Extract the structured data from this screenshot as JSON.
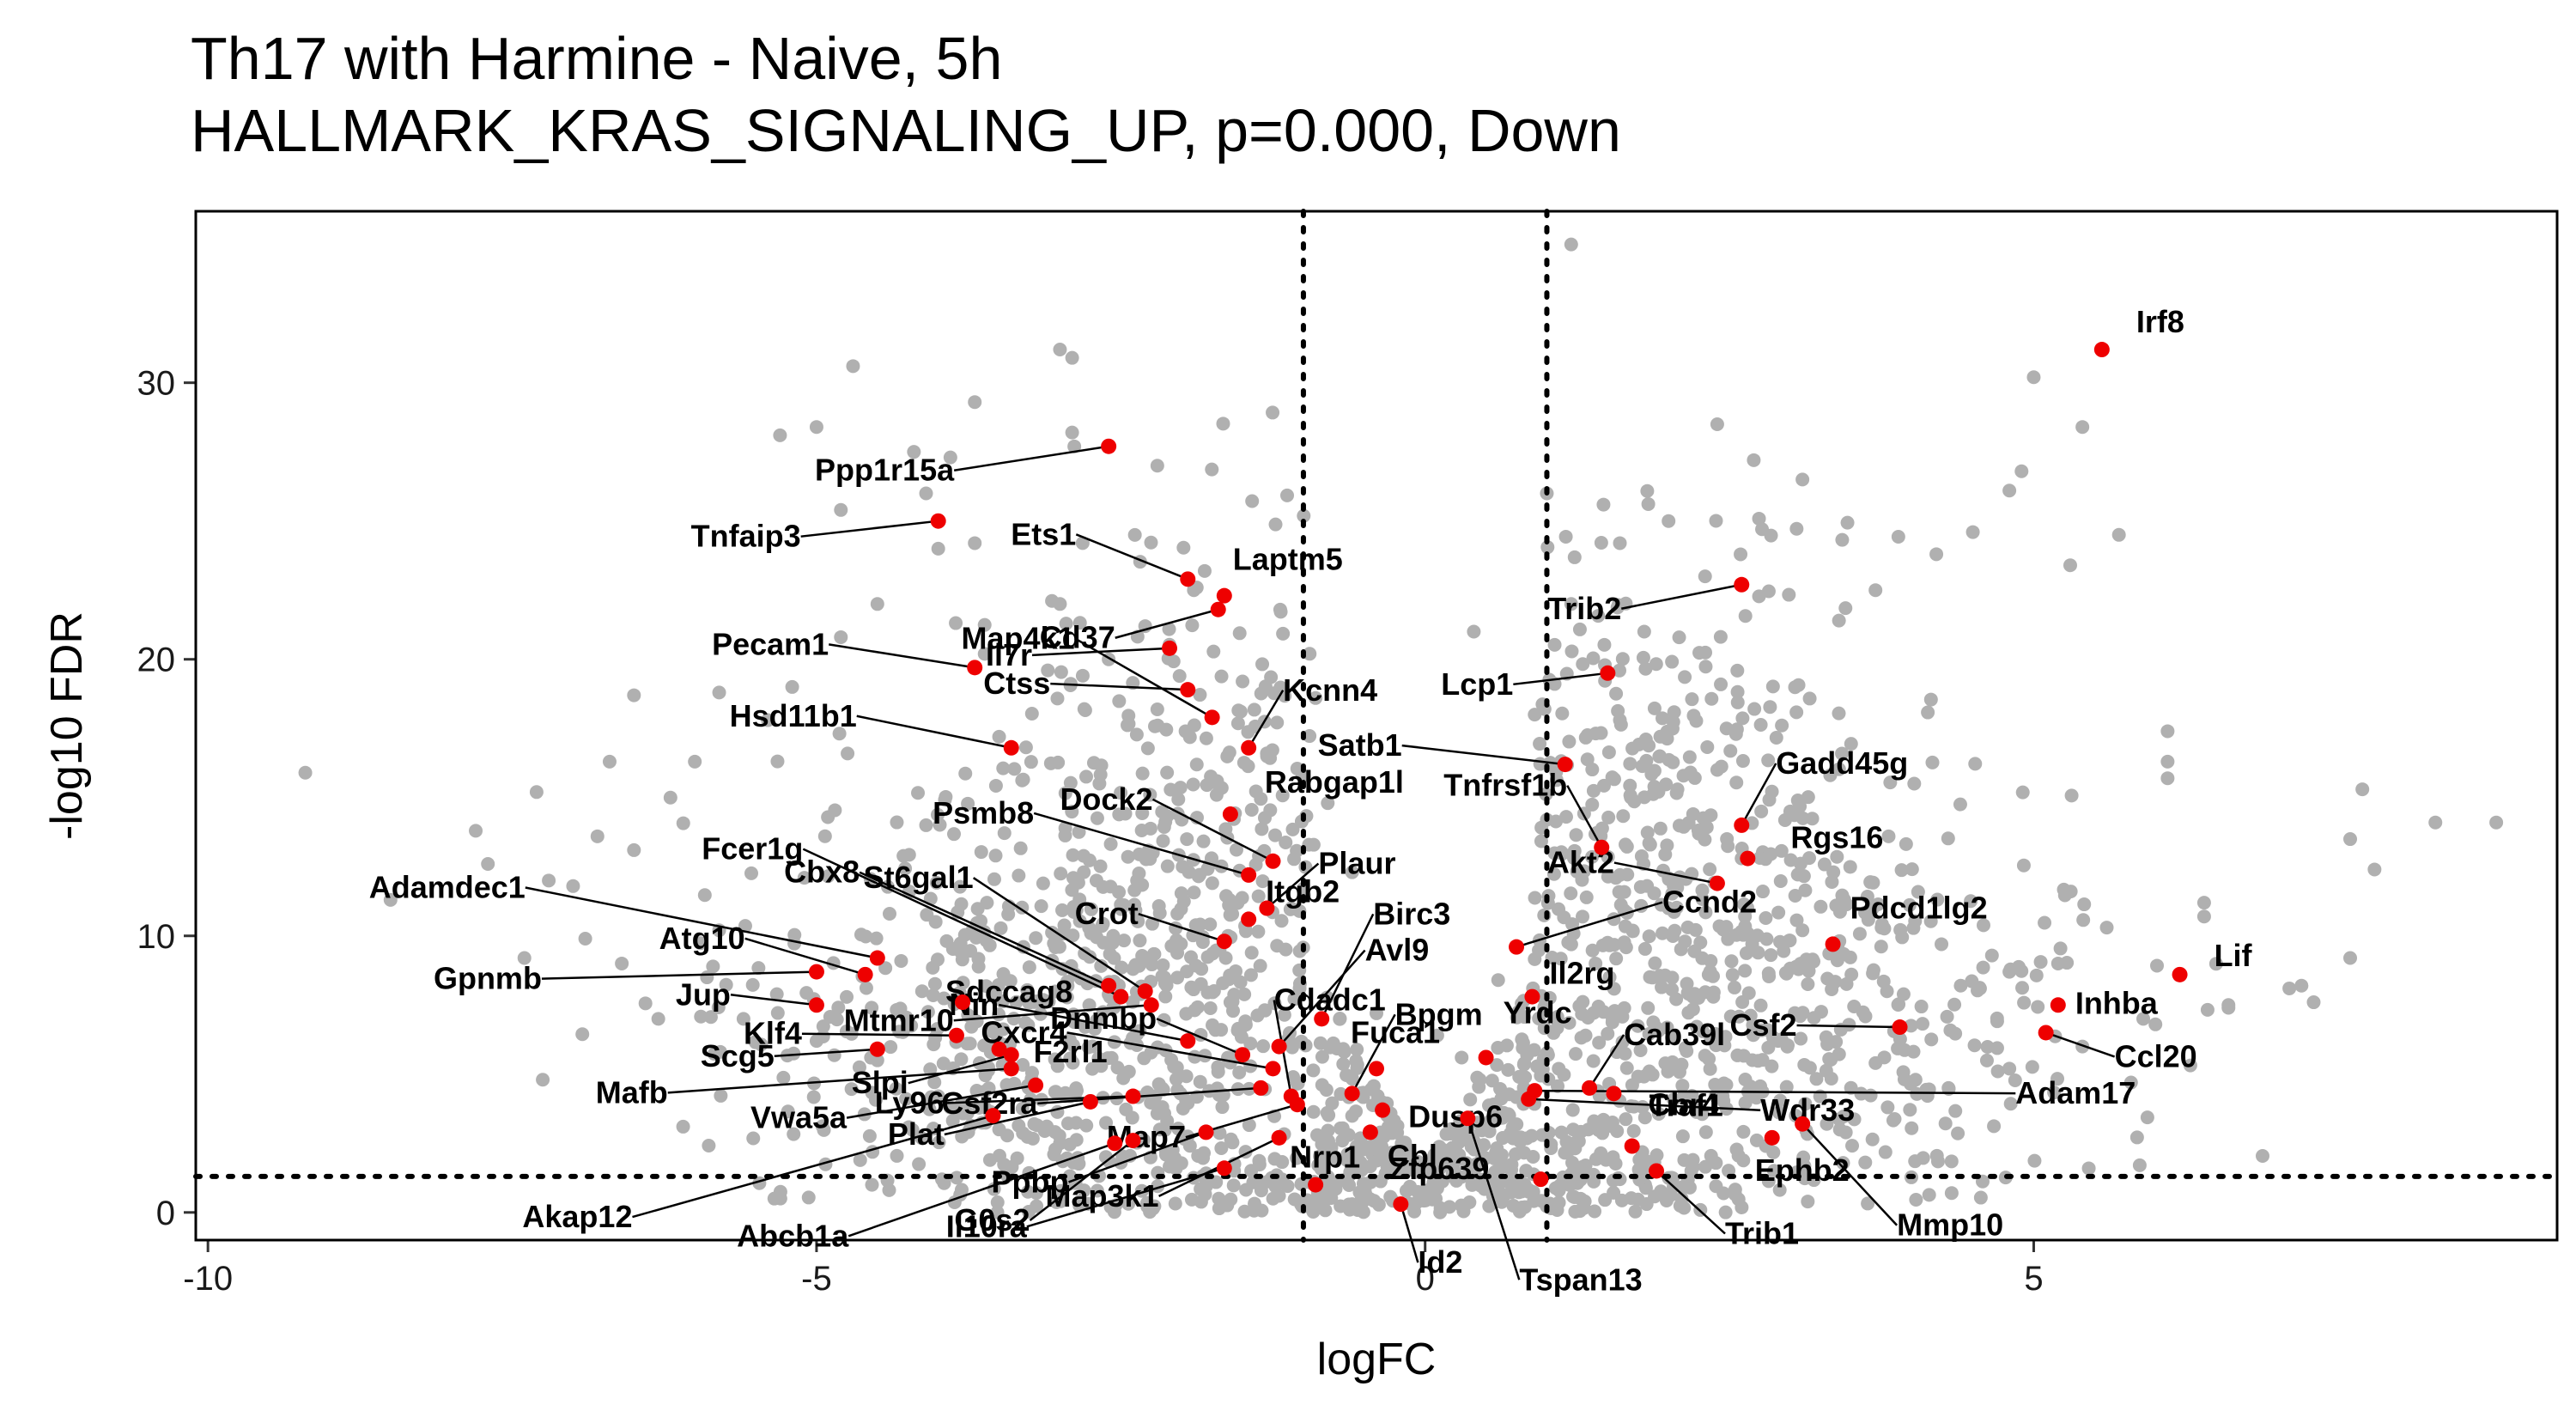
{
  "chart_data": {
    "type": "scatter",
    "title": "Th17 with Harmine - Naive, 5h",
    "subtitle": "HALLMARK_KRAS_SIGNALING_UP, p=0.000, Down",
    "xlabel": "logFC",
    "ylabel": "-log10 FDR",
    "xlim": [
      -10.1,
      9.3
    ],
    "ylim": [
      -1.0,
      36.2
    ],
    "xticks": [
      -10,
      -5,
      0,
      5
    ],
    "yticks": [
      0,
      10,
      20,
      30
    ],
    "grid": false,
    "legend": "none",
    "colors": {
      "background_genes": "#b0b0b0",
      "highlighted_genes": "#ee0000",
      "thresholds": "#000000"
    },
    "thresholds": {
      "logFC": [
        -1,
        1
      ],
      "neg_log10_fdr": 1.3
    },
    "background_points": [
      [
        -9.2,
        15.9
      ],
      [
        -8.5,
        11.3
      ],
      [
        -7.8,
        13.8
      ],
      [
        -7.7,
        12.6
      ],
      [
        -7.3,
        15.2
      ],
      [
        -7.0,
        11.8
      ],
      [
        -6.7,
        16.3
      ],
      [
        -6.5,
        13.1
      ],
      [
        -6.5,
        18.7
      ],
      [
        -6.0,
        16.3
      ],
      [
        -5.8,
        10.2
      ],
      [
        -5.4,
        17.8
      ],
      [
        -5.0,
        28.4
      ],
      [
        -4.7,
        30.6
      ],
      [
        -5.3,
        28.1
      ],
      [
        -4.2,
        27.5
      ],
      [
        -4.1,
        26.0
      ],
      [
        -3.9,
        27.3
      ],
      [
        -3.7,
        24.2
      ],
      [
        -3.0,
        31.2
      ],
      [
        -2.9,
        30.9
      ],
      [
        -2.9,
        28.2
      ],
      [
        -3.0,
        22.0
      ],
      [
        -2.2,
        27.0
      ],
      [
        -4.5,
        22.0
      ],
      [
        -4.8,
        20.8
      ],
      [
        -5.2,
        19.0
      ],
      [
        -5.8,
        18.8
      ],
      [
        -6.2,
        15.0
      ],
      [
        -6.8,
        13.6
      ],
      [
        -7.2,
        12.0
      ],
      [
        -6.6,
        9.0
      ],
      [
        -5.9,
        8.5
      ],
      [
        -5.6,
        7.0
      ],
      [
        -5.0,
        6.2
      ],
      [
        -4.5,
        5.5
      ],
      [
        -4.0,
        4.2
      ],
      [
        -3.5,
        3.0
      ],
      [
        -3.0,
        2.5
      ],
      [
        -2.5,
        1.8
      ],
      [
        -1.8,
        1.2
      ],
      [
        -1.2,
        0.6
      ],
      [
        -0.6,
        0.3
      ],
      [
        0.2,
        0.2
      ],
      [
        0.6,
        0.4
      ],
      [
        1.1,
        0.8
      ],
      [
        1.6,
        1.2
      ],
      [
        2.2,
        1.9
      ],
      [
        2.8,
        2.4
      ],
      [
        3.3,
        3.2
      ],
      [
        3.8,
        3.8
      ],
      [
        4.3,
        4.5
      ],
      [
        4.8,
        5.2
      ],
      [
        5.4,
        6.0
      ],
      [
        6.0,
        6.8
      ],
      [
        6.6,
        7.5
      ],
      [
        7.2,
        8.2
      ],
      [
        7.6,
        9.2
      ],
      [
        8.3,
        14.1
      ],
      [
        8.8,
        14.1
      ],
      [
        7.6,
        13.5
      ],
      [
        7.7,
        15.3
      ],
      [
        7.8,
        12.4
      ],
      [
        6.1,
        16.3
      ],
      [
        6.1,
        17.4
      ],
      [
        6.1,
        15.7
      ],
      [
        5.0,
        30.2
      ],
      [
        5.4,
        28.4
      ],
      [
        4.9,
        26.8
      ],
      [
        4.8,
        26.1
      ],
      [
        4.5,
        24.6
      ],
      [
        4.2,
        23.8
      ],
      [
        3.7,
        22.5
      ],
      [
        3.4,
        21.4
      ],
      [
        5.7,
        24.5
      ],
      [
        5.3,
        23.4
      ],
      [
        6.4,
        11.2
      ],
      [
        6.4,
        10.7
      ],
      [
        5.6,
        10.3
      ],
      [
        5.2,
        9.0
      ],
      [
        4.8,
        8.7
      ],
      [
        4.4,
        8.2
      ],
      [
        7.1,
        8.1
      ],
      [
        7.3,
        7.6
      ],
      [
        5.9,
        7.0
      ],
      [
        6.6,
        7.4
      ],
      [
        1.2,
        35.0
      ],
      [
        0.4,
        21.0
      ],
      [
        1.2,
        22.0
      ],
      [
        0.9,
        18.0
      ],
      [
        2.4,
        28.5
      ],
      [
        2.7,
        27.2
      ],
      [
        3.1,
        26.5
      ],
      [
        2.0,
        25.0
      ],
      [
        1.6,
        24.2
      ],
      [
        2.3,
        23.0
      ],
      [
        1.0,
        26.0
      ],
      [
        1.8,
        21.0
      ],
      [
        -1.9,
        22.5
      ],
      [
        -2.3,
        21.2
      ],
      [
        -2.6,
        20.0
      ],
      [
        -1.5,
        19.2
      ],
      [
        -0.9,
        18.6
      ],
      [
        -2.8,
        18.2
      ],
      [
        -3.1,
        19.6
      ],
      [
        -3.5,
        17.2
      ],
      [
        -1.3,
        16.6
      ],
      [
        -0.8,
        14.8
      ],
      [
        -2.0,
        14.2
      ],
      [
        -4.1,
        14.0
      ],
      [
        -0.6,
        12.3
      ],
      [
        -1.1,
        11.0
      ],
      [
        -5.1,
        12.1
      ],
      [
        -4.4,
        10.8
      ],
      [
        -3.6,
        11.2
      ],
      [
        -2.7,
        12.0
      ],
      [
        -3.3,
        9.6
      ],
      [
        -2.4,
        8.8
      ],
      [
        -1.6,
        7.6
      ],
      [
        -0.4,
        7.2
      ],
      [
        0.1,
        6.4
      ],
      [
        0.3,
        5.6
      ],
      [
        0.6,
        8.4
      ],
      [
        1.4,
        9.0
      ],
      [
        2.0,
        11.0
      ],
      [
        2.6,
        12.8
      ],
      [
        3.0,
        14.5
      ],
      [
        2.4,
        16.0
      ],
      [
        1.6,
        17.8
      ],
      [
        1.0,
        14.2
      ],
      [
        1.6,
        12.2
      ],
      [
        2.2,
        7.8
      ],
      [
        2.9,
        6.2
      ],
      [
        3.7,
        5.4
      ],
      [
        3.1,
        10.2
      ],
      [
        -6.3,
        7.0
      ],
      [
        -6.9,
        9.9
      ],
      [
        -7.4,
        9.2
      ],
      [
        -3.7,
        29.3
      ],
      [
        -4.8,
        25.4
      ],
      [
        -4.0,
        24.0
      ]
    ],
    "labeled_genes": [
      {
        "gene": "Irf8",
        "x": 5.56,
        "y": 31.2
      },
      {
        "gene": "Lif",
        "x": 6.2,
        "y": 8.6
      },
      {
        "gene": "Inhba",
        "x": 5.2,
        "y": 7.5
      },
      {
        "gene": "Ccl20",
        "x": 5.1,
        "y": 6.5
      },
      {
        "gene": "Pdcd1lg2",
        "x": 3.35,
        "y": 9.7
      },
      {
        "gene": "Csf2",
        "x": 3.9,
        "y": 6.7
      },
      {
        "gene": "Adam17",
        "x": 0.9,
        "y": 4.4
      },
      {
        "gene": "Mmp10",
        "x": 3.1,
        "y": 3.2
      },
      {
        "gene": "Ephb2",
        "x": 2.85,
        "y": 2.7
      },
      {
        "gene": "Gadd45g",
        "x": 2.6,
        "y": 14.0
      },
      {
        "gene": "Rgs16",
        "x": 2.65,
        "y": 12.8
      },
      {
        "gene": "Akt2",
        "x": 2.4,
        "y": 11.9
      },
      {
        "gene": "Tnfrsf1b",
        "x": 1.45,
        "y": 13.2
      },
      {
        "gene": "Trib2",
        "x": 2.6,
        "y": 22.7
      },
      {
        "gene": "Lcp1",
        "x": 1.5,
        "y": 19.5
      },
      {
        "gene": "Satb1",
        "x": 1.15,
        "y": 16.2
      },
      {
        "gene": "Ccnd2",
        "x": 0.75,
        "y": 9.6
      },
      {
        "gene": "Il2rg",
        "x": 0.88,
        "y": 7.8
      },
      {
        "gene": "Yrdc",
        "x": 0.5,
        "y": 5.6
      },
      {
        "gene": "Cab39l",
        "x": 1.35,
        "y": 4.5
      },
      {
        "gene": "Cbr4",
        "x": 1.55,
        "y": 4.3
      },
      {
        "gene": "Wdr33",
        "x": 0.85,
        "y": 4.1
      },
      {
        "gene": "Traf1",
        "x": 1.7,
        "y": 2.4
      },
      {
        "gene": "Trib1",
        "x": 1.9,
        "y": 1.5
      },
      {
        "gene": "Zfp639",
        "x": 0.95,
        "y": 1.2
      },
      {
        "gene": "Tspan13",
        "x": 0.35,
        "y": 3.4
      },
      {
        "gene": "Id2",
        "x": -0.2,
        "y": 0.3
      },
      {
        "gene": "Cbl",
        "x": -0.45,
        "y": 2.9
      },
      {
        "gene": "Dusp6",
        "x": -0.35,
        "y": 3.7
      },
      {
        "gene": "Fuca1",
        "x": -0.4,
        "y": 5.2
      },
      {
        "gene": "Bpgm",
        "x": -0.6,
        "y": 4.3
      },
      {
        "gene": "Birc3",
        "x": -0.85,
        "y": 7.0
      },
      {
        "gene": "Avl9",
        "x": -1.2,
        "y": 6.0
      },
      {
        "gene": "Cdadc1",
        "x": -1.1,
        "y": 4.2
      },
      {
        "gene": "Nrp1",
        "x": -0.9,
        "y": 1.0
      },
      {
        "gene": "Map3k1",
        "x": -1.2,
        "y": 2.7
      },
      {
        "gene": "Map7",
        "x": -1.05,
        "y": 3.9
      },
      {
        "gene": "Il10ra",
        "x": -1.65,
        "y": 1.6
      },
      {
        "gene": "Ppbp",
        "x": -1.8,
        "y": 2.9
      },
      {
        "gene": "Csf2ra",
        "x": -1.35,
        "y": 4.5
      },
      {
        "gene": "Cxcr4",
        "x": -1.25,
        "y": 5.2
      },
      {
        "gene": "Dnmbp",
        "x": -1.5,
        "y": 5.7
      },
      {
        "gene": "Nin",
        "x": -1.95,
        "y": 6.2
      },
      {
        "gene": "Mtmr10",
        "x": -2.25,
        "y": 7.5
      },
      {
        "gene": "St6gal1",
        "x": -2.3,
        "y": 8.0
      },
      {
        "gene": "Cbx8",
        "x": -2.6,
        "y": 8.2
      },
      {
        "gene": "Crot",
        "x": -1.65,
        "y": 9.8
      },
      {
        "gene": "Itgb2",
        "x": -1.45,
        "y": 10.6
      },
      {
        "gene": "Plaur",
        "x": -1.3,
        "y": 11.0
      },
      {
        "gene": "Dock2",
        "x": -1.25,
        "y": 12.7
      },
      {
        "gene": "Rabgap1l",
        "x": -1.6,
        "y": 14.4
      },
      {
        "gene": "Psmb8",
        "x": -1.45,
        "y": 12.2
      },
      {
        "gene": "Map4k1",
        "x": -1.75,
        "y": 17.9
      },
      {
        "gene": "Kcnn4",
        "x": -1.45,
        "y": 16.8
      },
      {
        "gene": "Ctss",
        "x": -1.95,
        "y": 18.9
      },
      {
        "gene": "Cd37",
        "x": -1.7,
        "y": 21.8
      },
      {
        "gene": "Il7r",
        "x": -2.1,
        "y": 20.4
      },
      {
        "gene": "Laptm5",
        "x": -1.65,
        "y": 22.3
      },
      {
        "gene": "Ets1",
        "x": -1.95,
        "y": 22.9
      },
      {
        "gene": "Ppp1r15a",
        "x": -2.6,
        "y": 27.7
      },
      {
        "gene": "Tnfaip3",
        "x": -4.0,
        "y": 25.0
      },
      {
        "gene": "Pecam1",
        "x": -3.7,
        "y": 19.7
      },
      {
        "gene": "Hsd11b1",
        "x": -3.4,
        "y": 16.8
      },
      {
        "gene": "Fcer1g",
        "x": -2.5,
        "y": 7.8
      },
      {
        "gene": "Adamdec1",
        "x": -4.5,
        "y": 9.2
      },
      {
        "gene": "Sdccag8",
        "x": -3.8,
        "y": 7.6
      },
      {
        "gene": "Atg10",
        "x": -4.6,
        "y": 8.6
      },
      {
        "gene": "Gpnmb",
        "x": -5.0,
        "y": 8.7
      },
      {
        "gene": "Jup",
        "x": -5.0,
        "y": 7.5
      },
      {
        "gene": "Klf4",
        "x": -3.85,
        "y": 6.4
      },
      {
        "gene": "Scg5",
        "x": -4.5,
        "y": 5.9
      },
      {
        "gene": "Slpi",
        "x": -3.4,
        "y": 5.7
      },
      {
        "gene": "F2rl1",
        "x": -3.5,
        "y": 5.9
      },
      {
        "gene": "Mafb",
        "x": -3.4,
        "y": 5.2
      },
      {
        "gene": "Vwa5a",
        "x": -3.2,
        "y": 4.6
      },
      {
        "gene": "Ly96",
        "x": -2.4,
        "y": 4.2
      },
      {
        "gene": "Plat",
        "x": -2.75,
        "y": 4.0
      },
      {
        "gene": "Akap12",
        "x": -3.55,
        "y": 3.5
      },
      {
        "gene": "Abcb1a",
        "x": -2.55,
        "y": 2.5
      },
      {
        "gene": "G0s2",
        "x": -2.4,
        "y": 2.6
      }
    ]
  }
}
